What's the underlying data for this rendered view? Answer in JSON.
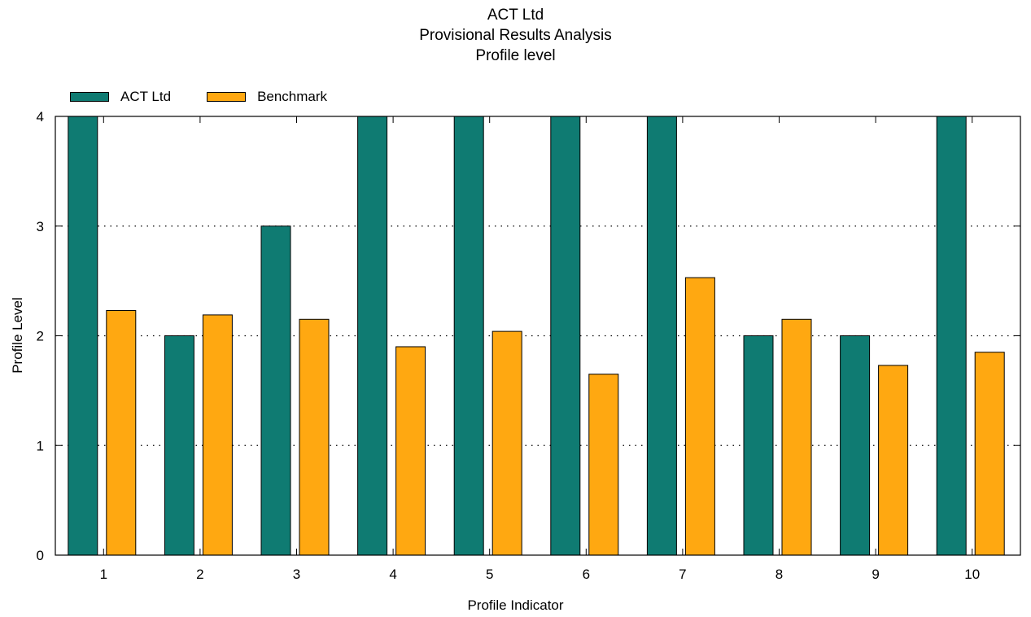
{
  "chart_data": {
    "type": "bar",
    "title_lines": [
      "ACT Ltd",
      "Provisional Results Analysis",
      "Profile level"
    ],
    "xlabel": "Profile Indicator",
    "ylabel": "Profile Level",
    "categories": [
      "1",
      "2",
      "3",
      "4",
      "5",
      "6",
      "7",
      "8",
      "9",
      "10"
    ],
    "ylim": [
      0,
      4
    ],
    "yticks": [
      0,
      1,
      2,
      3,
      4
    ],
    "grid": "dotted horizontal",
    "legend_position": "top-left",
    "series": [
      {
        "name": "ACT Ltd",
        "color": "#0f7b72",
        "values": [
          4,
          2,
          3,
          4,
          4,
          4,
          4,
          2,
          2,
          4
        ]
      },
      {
        "name": "Benchmark",
        "color": "#ffa811",
        "values": [
          2.23,
          2.19,
          2.15,
          1.9,
          2.04,
          1.65,
          2.53,
          2.15,
          1.73,
          1.85
        ]
      }
    ]
  }
}
